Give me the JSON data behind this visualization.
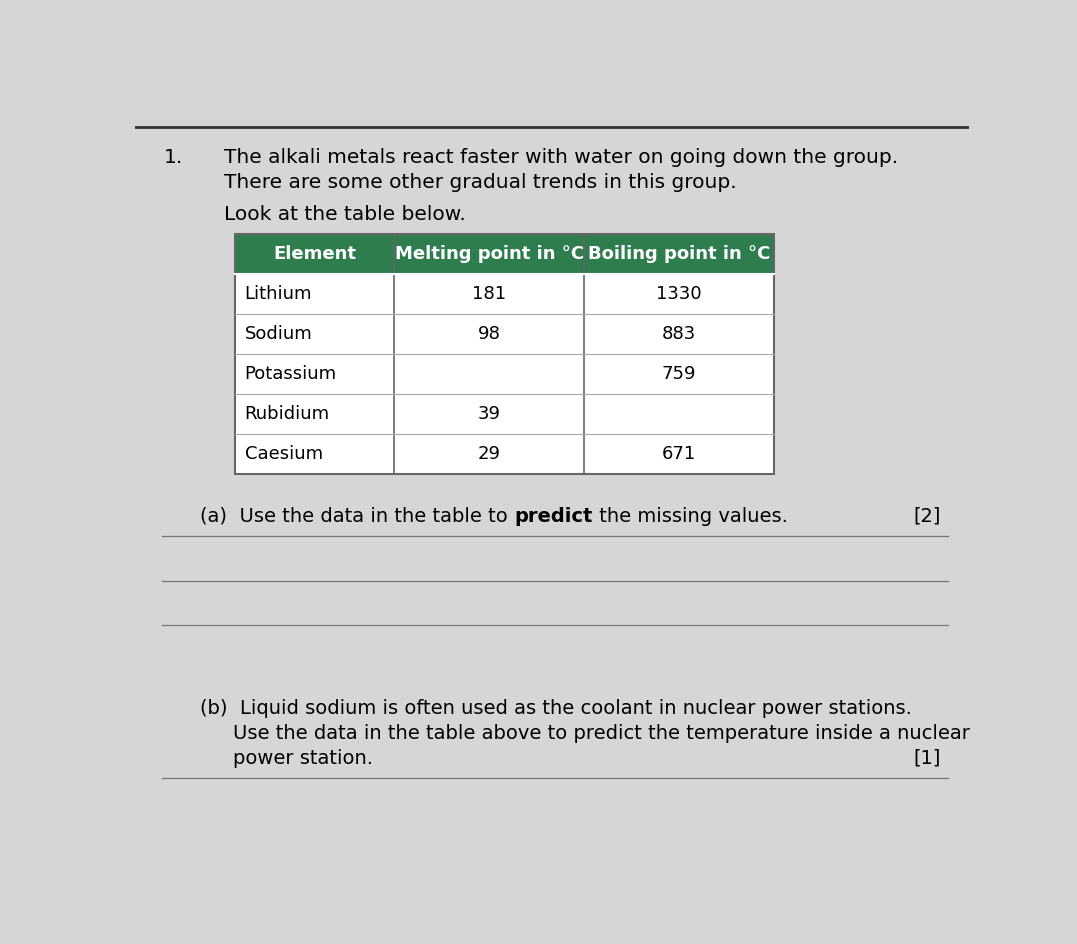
{
  "question_number": "1.",
  "intro_line1": "The alkali metals react faster with water on going down the group.",
  "intro_line2": "There are some other gradual trends in this group.",
  "look_at": "Look at the table below.",
  "table_header": [
    "Element",
    "Melting point in °C",
    "Boiling point in °C"
  ],
  "table_rows": [
    [
      "Lithium",
      "181",
      "1330"
    ],
    [
      "Sodium",
      "98",
      "883"
    ],
    [
      "Potassium",
      "",
      "759"
    ],
    [
      "Rubidium",
      "39",
      ""
    ],
    [
      "Caesium",
      "29",
      "671"
    ]
  ],
  "header_bg_color": "#2e7d4f",
  "header_text_color": "#ffffff",
  "table_border_color": "#666666",
  "table_cell_border": "#aaaaaa",
  "part_a_prefix": "(a)  Use the data in the table to ",
  "part_a_bold": "predict",
  "part_a_suffix": " the missing values.",
  "part_a_marks": "[2]",
  "part_b_prefix": "(b)  ",
  "part_b_line1": "Liquid sodium is often used as the coolant in nuclear power stations.",
  "part_b_line2": "Use the data in the table above to predict the temperature inside a nuclear",
  "part_b_line3": "power station.",
  "part_b_marks": "[1]",
  "answer_lines_a": 3,
  "answer_lines_b": 1,
  "page_bg": "#d6d6d6",
  "top_bar_color": "#333333",
  "font_size_intro": 14.5,
  "font_size_table_header": 13,
  "font_size_table": 13,
  "font_size_question": 14
}
